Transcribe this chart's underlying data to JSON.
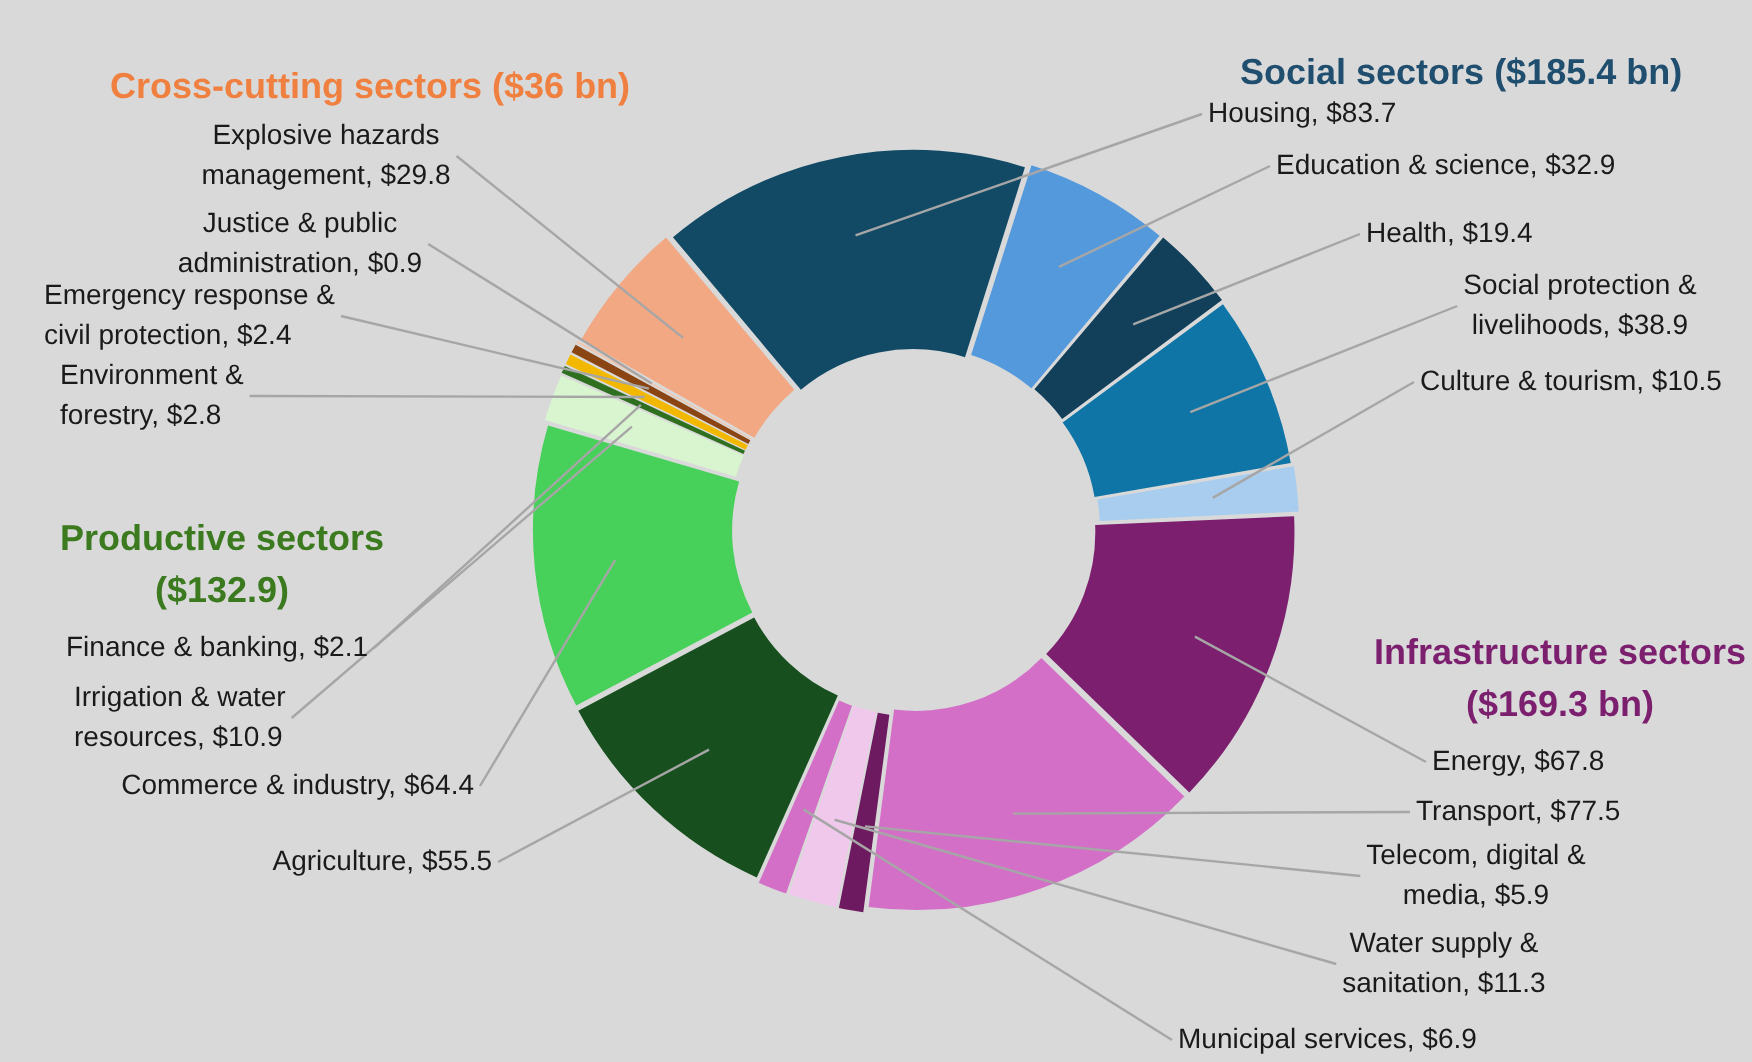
{
  "chart_data": {
    "type": "donut",
    "categories": [
      "Housing",
      "Education & science",
      "Health",
      "Social protection & livelihoods",
      "Culture & tourism",
      "Energy",
      "Transport",
      "Telecom, digital & media",
      "Water supply & sanitation",
      "Municipal services",
      "Agriculture",
      "Commerce & industry",
      "Irrigation & water resources",
      "Finance & banking",
      "Environment & forestry",
      "Emergency response & civil protection",
      "Justice & public administration",
      "Explosive hazards management"
    ],
    "values": [
      83.7,
      32.9,
      19.4,
      38.9,
      10.5,
      67.8,
      77.5,
      5.9,
      11.3,
      6.9,
      55.5,
      64.4,
      10.9,
      2.1,
      2.8,
      2.4,
      0.9,
      29.8
    ],
    "value_labels": [
      "$83.7",
      "$32.9",
      "$19.4",
      "$38.9",
      "$10.5",
      "$67.8",
      "$77.5",
      "$5.9",
      "$11.3",
      "$6.9",
      "$55.5",
      "$64.4",
      "$10.9",
      "$2.1",
      "$2.8",
      "$2.4",
      "$0.9",
      "$29.8"
    ],
    "colors": [
      "#124a66",
      "#5599dd",
      "#123f5a",
      "#0e75a6",
      "#a9cdee",
      "#7b1f6e",
      "#d46fc8",
      "#6e1a60",
      "#f0c8ec",
      "#d46fc8",
      "#17501e",
      "#47d15a",
      "#d9f5d0",
      "#2f7020",
      "#f2b800",
      "#8b4513",
      "#f4c4a8",
      "#f2a882"
    ],
    "annotations": [
      "Social sectors ($185.4 bn)",
      "Infrastructure sectors ($169.3 bn)",
      "Productive sectors ($132.9)",
      "Cross-cutting sectors ($36 bn)"
    ],
    "legend": false
  }
}
